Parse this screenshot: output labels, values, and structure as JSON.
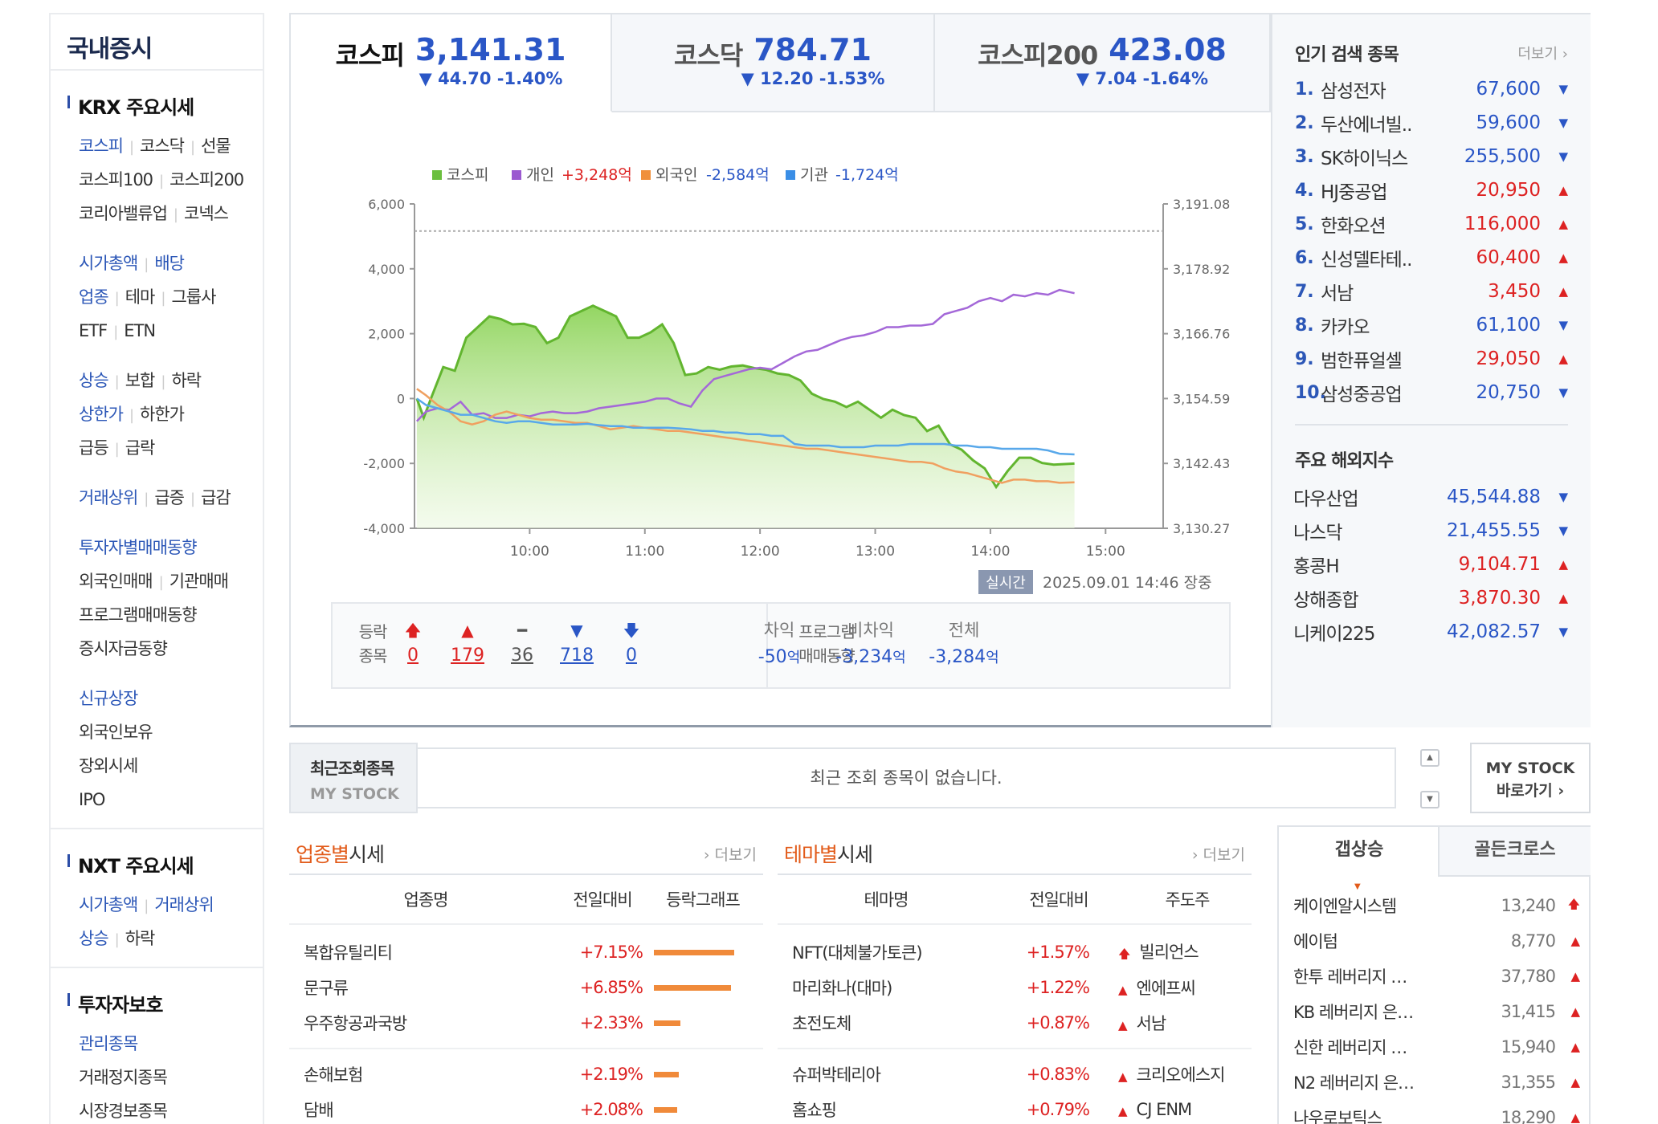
{
  "sidebar": {
    "title": "국내증시",
    "krx_title": "KRX 주요시세",
    "krx_rows": [
      [
        {
          "t": "코스피",
          "b": true
        },
        {
          "t": "코스닥",
          "b": false
        },
        {
          "t": "선물",
          "b": false
        }
      ],
      [
        {
          "t": "코스피100",
          "b": false
        },
        {
          "t": "코스피200",
          "b": false
        }
      ],
      [
        {
          "t": "코리아밸류업",
          "b": false
        },
        {
          "t": "코넥스",
          "b": false
        }
      ],
      [],
      [
        {
          "t": "시가총액",
          "b": true
        },
        {
          "t": "배당",
          "b": true
        }
      ],
      [
        {
          "t": "업종",
          "b": true
        },
        {
          "t": "테마",
          "b": false
        },
        {
          "t": "그룹사",
          "b": false
        }
      ],
      [
        {
          "t": "ETF",
          "b": false
        },
        {
          "t": "ETN",
          "b": false
        }
      ],
      [],
      [
        {
          "t": "상승",
          "b": true
        },
        {
          "t": "보합",
          "b": false
        },
        {
          "t": "하락",
          "b": false
        }
      ],
      [
        {
          "t": "상한가",
          "b": true
        },
        {
          "t": "하한가",
          "b": false
        }
      ],
      [
        {
          "t": "급등",
          "b": false
        },
        {
          "t": "급락",
          "b": false
        }
      ],
      [],
      [
        {
          "t": "거래상위",
          "b": true
        },
        {
          "t": "급증",
          "b": false
        },
        {
          "t": "급감",
          "b": false
        }
      ],
      [],
      [
        {
          "t": "투자자별매매동향",
          "b": true
        }
      ],
      [
        {
          "t": "외국인매매",
          "b": false
        },
        {
          "t": "기관매매",
          "b": false
        }
      ],
      [
        {
          "t": "프로그램매매동향",
          "b": false
        }
      ],
      [
        {
          "t": "증시자금동향",
          "b": false
        }
      ],
      [],
      [
        {
          "t": "신규상장",
          "b": true
        }
      ],
      [
        {
          "t": "외국인보유",
          "b": false
        }
      ],
      [
        {
          "t": "장외시세",
          "b": false
        }
      ],
      [
        {
          "t": "IPO",
          "b": false
        }
      ]
    ],
    "nxt_title": "NXT 주요시세",
    "nxt_rows": [
      [
        {
          "t": "시가총액",
          "b": true
        },
        {
          "t": "거래상위",
          "b": true
        }
      ],
      [
        {
          "t": "상승",
          "b": true
        },
        {
          "t": "하락",
          "b": false
        }
      ]
    ],
    "protect_title": "투자자보호",
    "protect_rows": [
      [
        {
          "t": "관리종목",
          "b": true
        }
      ],
      [
        {
          "t": "거래정지종목",
          "b": false
        }
      ],
      [
        {
          "t": "시장경보종목",
          "b": false
        }
      ]
    ]
  },
  "tabs": [
    {
      "name": "코스피",
      "value": "3,141.31",
      "change": "▼ 44.70 -1.40%"
    },
    {
      "name": "코스닥",
      "value": "784.71",
      "change": "▼ 12.20 -1.53%"
    },
    {
      "name": "코스피200",
      "value": "423.08",
      "change": "▼ 7.04 -1.64%"
    }
  ],
  "chart_data": {
    "type": "line",
    "legend": [
      {
        "name": "코스피",
        "value": "",
        "color": "#6bbf3e"
      },
      {
        "name": "개인",
        "value": "+3,248억",
        "color": "#9b59d0",
        "vcolor": "#d22"
      },
      {
        "name": "외국인",
        "value": "-2,584억",
        "color": "#f0903c",
        "vcolor": "#2a56c6"
      },
      {
        "name": "기관",
        "value": "-1,724억",
        "color": "#3a8ee6",
        "vcolor": "#2a56c6"
      }
    ],
    "y_left_ticks": [
      "6,000",
      "4,000",
      "2,000",
      "0",
      "-2,000",
      "-4,000"
    ],
    "y_left_range": [
      -4000,
      6000
    ],
    "y_right_ticks": [
      "3,191.08",
      "3,178.92",
      "3,166.76",
      "3,154.59",
      "3,142.43",
      "3,130.27"
    ],
    "y_right_range": [
      3130.27,
      3191.08
    ],
    "x_ticks": [
      "10:00",
      "11:00",
      "12:00",
      "13:00",
      "14:00",
      "15:00"
    ],
    "x_range": [
      9.0,
      15.5
    ],
    "reference_line": 3186.0,
    "kospi": [
      [
        9.02,
        3154.6
      ],
      [
        9.08,
        3151.0
      ],
      [
        9.15,
        3155.0
      ],
      [
        9.25,
        3160.5
      ],
      [
        9.35,
        3159.8
      ],
      [
        9.45,
        3166.0
      ],
      [
        9.55,
        3168.0
      ],
      [
        9.65,
        3170.0
      ],
      [
        9.75,
        3169.5
      ],
      [
        9.85,
        3168.5
      ],
      [
        9.95,
        3168.6
      ],
      [
        10.05,
        3168.0
      ],
      [
        10.15,
        3165.0
      ],
      [
        10.25,
        3166.0
      ],
      [
        10.35,
        3170.0
      ],
      [
        10.45,
        3171.0
      ],
      [
        10.55,
        3172.0
      ],
      [
        10.65,
        3171.0
      ],
      [
        10.75,
        3170.0
      ],
      [
        10.85,
        3166.0
      ],
      [
        10.95,
        3166.0
      ],
      [
        11.05,
        3167.0
      ],
      [
        11.15,
        3168.5
      ],
      [
        11.25,
        3165.0
      ],
      [
        11.35,
        3159.0
      ],
      [
        11.45,
        3159.3
      ],
      [
        11.55,
        3160.5
      ],
      [
        11.65,
        3160.0
      ],
      [
        11.75,
        3160.6
      ],
      [
        11.85,
        3160.8
      ],
      [
        11.95,
        3160.3
      ],
      [
        12.05,
        3160.0
      ],
      [
        12.15,
        3159.3
      ],
      [
        12.25,
        3159.0
      ],
      [
        12.35,
        3158.0
      ],
      [
        12.45,
        3155.5
      ],
      [
        12.55,
        3154.5
      ],
      [
        12.65,
        3154.0
      ],
      [
        12.75,
        3153.0
      ],
      [
        12.85,
        3154.0
      ],
      [
        12.95,
        3152.5
      ],
      [
        13.05,
        3151.0
      ],
      [
        13.15,
        3152.5
      ],
      [
        13.25,
        3151.5
      ],
      [
        13.35,
        3151.0
      ],
      [
        13.45,
        3148.5
      ],
      [
        13.55,
        3149.5
      ],
      [
        13.65,
        3146.0
      ],
      [
        13.75,
        3145.0
      ],
      [
        13.85,
        3143.0
      ],
      [
        13.95,
        3141.5
      ],
      [
        14.05,
        3138.0
      ],
      [
        14.15,
        3141.0
      ],
      [
        14.25,
        3143.5
      ],
      [
        14.35,
        3143.5
      ],
      [
        14.45,
        3142.5
      ],
      [
        14.55,
        3142.2
      ],
      [
        14.73,
        3142.4
      ]
    ],
    "individual": [
      [
        9.02,
        -700
      ],
      [
        9.1,
        -400
      ],
      [
        9.2,
        -300
      ],
      [
        9.3,
        -350
      ],
      [
        9.4,
        -100
      ],
      [
        9.5,
        -500
      ],
      [
        9.6,
        -450
      ],
      [
        9.7,
        -600
      ],
      [
        9.8,
        -600
      ],
      [
        9.9,
        -500
      ],
      [
        10.0,
        -550
      ],
      [
        10.1,
        -450
      ],
      [
        10.2,
        -400
      ],
      [
        10.3,
        -450
      ],
      [
        10.4,
        -450
      ],
      [
        10.5,
        -400
      ],
      [
        10.6,
        -300
      ],
      [
        10.7,
        -250
      ],
      [
        10.8,
        -200
      ],
      [
        10.9,
        -150
      ],
      [
        11.0,
        -100
      ],
      [
        11.1,
        0
      ],
      [
        11.2,
        0
      ],
      [
        11.3,
        -150
      ],
      [
        11.4,
        -250
      ],
      [
        11.5,
        250
      ],
      [
        11.6,
        600
      ],
      [
        11.7,
        700
      ],
      [
        11.8,
        800
      ],
      [
        11.9,
        900
      ],
      [
        12.0,
        950
      ],
      [
        12.1,
        900
      ],
      [
        12.2,
        1100
      ],
      [
        12.3,
        1300
      ],
      [
        12.4,
        1450
      ],
      [
        12.5,
        1500
      ],
      [
        12.6,
        1650
      ],
      [
        12.7,
        1800
      ],
      [
        12.8,
        1900
      ],
      [
        12.9,
        1950
      ],
      [
        13.0,
        2050
      ],
      [
        13.1,
        2200
      ],
      [
        13.2,
        2200
      ],
      [
        13.3,
        2250
      ],
      [
        13.4,
        2250
      ],
      [
        13.5,
        2300
      ],
      [
        13.6,
        2600
      ],
      [
        13.7,
        2700
      ],
      [
        13.8,
        2800
      ],
      [
        13.9,
        3000
      ],
      [
        14.0,
        3100
      ],
      [
        14.1,
        3000
      ],
      [
        14.2,
        3200
      ],
      [
        14.3,
        3150
      ],
      [
        14.4,
        3250
      ],
      [
        14.5,
        3200
      ],
      [
        14.6,
        3350
      ],
      [
        14.73,
        3248
      ]
    ],
    "foreign": [
      [
        9.02,
        300
      ],
      [
        9.1,
        100
      ],
      [
        9.2,
        -200
      ],
      [
        9.3,
        -400
      ],
      [
        9.4,
        -700
      ],
      [
        9.5,
        -800
      ],
      [
        9.6,
        -700
      ],
      [
        9.7,
        -500
      ],
      [
        9.8,
        -400
      ],
      [
        9.9,
        -500
      ],
      [
        10.0,
        -600
      ],
      [
        10.1,
        -650
      ],
      [
        10.2,
        -650
      ],
      [
        10.3,
        -700
      ],
      [
        10.4,
        -750
      ],
      [
        10.5,
        -750
      ],
      [
        10.6,
        -850
      ],
      [
        10.7,
        -950
      ],
      [
        10.8,
        -900
      ],
      [
        10.9,
        -850
      ],
      [
        11.0,
        -900
      ],
      [
        11.1,
        -950
      ],
      [
        11.2,
        -1000
      ],
      [
        11.3,
        -1000
      ],
      [
        11.4,
        -1050
      ],
      [
        11.5,
        -1100
      ],
      [
        11.6,
        -1150
      ],
      [
        11.7,
        -1200
      ],
      [
        11.8,
        -1250
      ],
      [
        11.9,
        -1300
      ],
      [
        12.0,
        -1350
      ],
      [
        12.1,
        -1400
      ],
      [
        12.2,
        -1450
      ],
      [
        12.3,
        -1500
      ],
      [
        12.4,
        -1550
      ],
      [
        12.5,
        -1550
      ],
      [
        12.6,
        -1600
      ],
      [
        12.7,
        -1650
      ],
      [
        12.8,
        -1700
      ],
      [
        12.9,
        -1750
      ],
      [
        13.0,
        -1800
      ],
      [
        13.1,
        -1850
      ],
      [
        13.2,
        -1900
      ],
      [
        13.3,
        -1950
      ],
      [
        13.4,
        -1950
      ],
      [
        13.5,
        -2000
      ],
      [
        13.6,
        -2150
      ],
      [
        13.7,
        -2250
      ],
      [
        13.8,
        -2300
      ],
      [
        13.9,
        -2400
      ],
      [
        14.0,
        -2500
      ],
      [
        14.1,
        -2600
      ],
      [
        14.2,
        -2500
      ],
      [
        14.3,
        -2500
      ],
      [
        14.4,
        -2550
      ],
      [
        14.5,
        -2550
      ],
      [
        14.6,
        -2600
      ],
      [
        14.73,
        -2584
      ]
    ],
    "institution": [
      [
        9.02,
        0
      ],
      [
        9.1,
        -200
      ],
      [
        9.2,
        -300
      ],
      [
        9.3,
        -400
      ],
      [
        9.4,
        -500
      ],
      [
        9.5,
        -500
      ],
      [
        9.6,
        -600
      ],
      [
        9.7,
        -700
      ],
      [
        9.8,
        -750
      ],
      [
        9.9,
        -700
      ],
      [
        10.0,
        -700
      ],
      [
        10.1,
        -750
      ],
      [
        10.2,
        -800
      ],
      [
        10.3,
        -800
      ],
      [
        10.4,
        -800
      ],
      [
        10.5,
        -780
      ],
      [
        10.6,
        -820
      ],
      [
        10.7,
        -850
      ],
      [
        10.8,
        -850
      ],
      [
        10.9,
        -900
      ],
      [
        11.0,
        -900
      ],
      [
        11.1,
        -900
      ],
      [
        11.2,
        -900
      ],
      [
        11.3,
        -920
      ],
      [
        11.4,
        -950
      ],
      [
        11.5,
        -1000
      ],
      [
        11.6,
        -1000
      ],
      [
        11.7,
        -1050
      ],
      [
        11.8,
        -1050
      ],
      [
        11.9,
        -1100
      ],
      [
        12.0,
        -1100
      ],
      [
        12.1,
        -1150
      ],
      [
        12.2,
        -1150
      ],
      [
        12.3,
        -1400
      ],
      [
        12.4,
        -1450
      ],
      [
        12.5,
        -1450
      ],
      [
        12.6,
        -1450
      ],
      [
        12.7,
        -1500
      ],
      [
        12.8,
        -1500
      ],
      [
        12.9,
        -1500
      ],
      [
        13.0,
        -1450
      ],
      [
        13.1,
        -1450
      ],
      [
        13.2,
        -1450
      ],
      [
        13.3,
        -1400
      ],
      [
        13.4,
        -1400
      ],
      [
        13.5,
        -1400
      ],
      [
        13.6,
        -1400
      ],
      [
        13.7,
        -1450
      ],
      [
        13.8,
        -1450
      ],
      [
        13.9,
        -1500
      ],
      [
        14.0,
        -1500
      ],
      [
        14.1,
        -1550
      ],
      [
        14.2,
        -1550
      ],
      [
        14.3,
        -1550
      ],
      [
        14.4,
        -1550
      ],
      [
        14.5,
        -1600
      ],
      [
        14.6,
        -1700
      ],
      [
        14.73,
        -1724
      ]
    ]
  },
  "timestamp": {
    "badge": "실시간",
    "text": "2025.09.01 14:46 장중"
  },
  "stats": {
    "label1": "등락",
    "label2": "종목",
    "items": [
      {
        "icon": "🡅",
        "n": "0",
        "c": "#d22"
      },
      {
        "icon": "▲",
        "n": "179",
        "c": "#d22"
      },
      {
        "icon": "━",
        "n": "36",
        "c": "#555"
      },
      {
        "icon": "▼",
        "n": "718",
        "c": "#2a56c6"
      },
      {
        "icon": "🡇",
        "n": "0",
        "c": "#2a56c6"
      }
    ],
    "prog_label1": "프로그램",
    "prog_label2": "매매동향",
    "program": [
      {
        "h": "차익",
        "v": "-50",
        "u": "억"
      },
      {
        "h": "비차익",
        "v": "-3,234",
        "u": "억"
      },
      {
        "h": "전체",
        "v": "-3,284",
        "u": "억"
      }
    ]
  },
  "popular": {
    "title": "인기 검색 종목",
    "more": "더보기",
    "items": [
      {
        "no": "1.",
        "name": "삼성전자",
        "price": "67,600",
        "dir": "dn"
      },
      {
        "no": "2.",
        "name": "두산에너빌..",
        "price": "59,600",
        "dir": "dn"
      },
      {
        "no": "3.",
        "name": "SK하이닉스",
        "price": "255,500",
        "dir": "dn"
      },
      {
        "no": "4.",
        "name": "HJ중공업",
        "price": "20,950",
        "dir": "up"
      },
      {
        "no": "5.",
        "name": "한화오션",
        "price": "116,000",
        "dir": "up"
      },
      {
        "no": "6.",
        "name": "신성델타테..",
        "price": "60,400",
        "dir": "up"
      },
      {
        "no": "7.",
        "name": "서남",
        "price": "3,450",
        "dir": "up"
      },
      {
        "no": "8.",
        "name": "카카오",
        "price": "61,100",
        "dir": "dn"
      },
      {
        "no": "9.",
        "name": "범한퓨얼셀",
        "price": "29,050",
        "dir": "up"
      },
      {
        "no": "10.",
        "name": "삼성중공업",
        "price": "20,750",
        "dir": "dn"
      }
    ]
  },
  "global": {
    "title": "주요 해외지수",
    "items": [
      {
        "name": "다우산업",
        "price": "45,544.88",
        "dir": "dn"
      },
      {
        "name": "나스닥",
        "price": "21,455.55",
        "dir": "dn"
      },
      {
        "name": "홍콩H",
        "price": "9,104.71",
        "dir": "up"
      },
      {
        "name": "상해종합",
        "price": "3,870.30",
        "dir": "up"
      },
      {
        "name": "니케이225",
        "price": "42,082.57",
        "dir": "dn"
      }
    ]
  },
  "recent": {
    "label1": "최근조회종목",
    "label2": "MY STOCK",
    "empty": "최근 조회 종목이 없습니다.",
    "btn1": "MY STOCK",
    "btn2": "바로가기 ›"
  },
  "sector": {
    "title_hl": "업종별",
    "title": "시세",
    "more": "› 더보기",
    "cols": [
      "업종명",
      "전일대비",
      "등락그래프"
    ],
    "rows": [
      {
        "name": "복합유틸리티",
        "chg": "+7.15%",
        "pct": 7.15
      },
      {
        "name": "문구류",
        "chg": "+6.85%",
        "pct": 6.85
      },
      {
        "name": "우주항공과국방",
        "chg": "+2.33%",
        "pct": 2.33
      },
      {
        "name": "손해보험",
        "chg": "+2.19%",
        "pct": 2.19
      },
      {
        "name": "담배",
        "chg": "+2.08%",
        "pct": 2.08
      }
    ]
  },
  "theme": {
    "title_hl": "테마별",
    "title": "시세",
    "more": "› 더보기",
    "cols": [
      "테마명",
      "전일대비",
      "주도주"
    ],
    "rows": [
      {
        "name": "NFT(대체불가토큰)",
        "chg": "+1.57%",
        "icon": "🡅",
        "lead": "빌리언스"
      },
      {
        "name": "마리화나(대마)",
        "chg": "+1.22%",
        "icon": "▲",
        "lead": "엔에프씨"
      },
      {
        "name": "초전도체",
        "chg": "+0.87%",
        "icon": "▲",
        "lead": "서남"
      },
      {
        "name": "슈퍼박테리아",
        "chg": "+0.83%",
        "icon": "▲",
        "lead": "크리오에스지"
      },
      {
        "name": "홈쇼핑",
        "chg": "+0.79%",
        "icon": "▲",
        "lead": "CJ ENM"
      }
    ]
  },
  "gap": {
    "tab1": "갭상승",
    "tab2": "골든크로스",
    "rows": [
      {
        "name": "케이엔알시스템",
        "price": "13,240",
        "icon": "🡅"
      },
      {
        "name": "에이텀",
        "price": "8,770",
        "icon": "▲"
      },
      {
        "name": "한투 레버리지 …",
        "price": "37,780",
        "icon": "▲"
      },
      {
        "name": "KB 레버리지 은…",
        "price": "31,415",
        "icon": "▲"
      },
      {
        "name": "신한 레버리지 …",
        "price": "15,940",
        "icon": "▲"
      },
      {
        "name": "N2 레버리지 은…",
        "price": "31,355",
        "icon": "▲"
      },
      {
        "name": "나우로보틱스",
        "price": "18,290",
        "icon": "▲"
      }
    ]
  }
}
